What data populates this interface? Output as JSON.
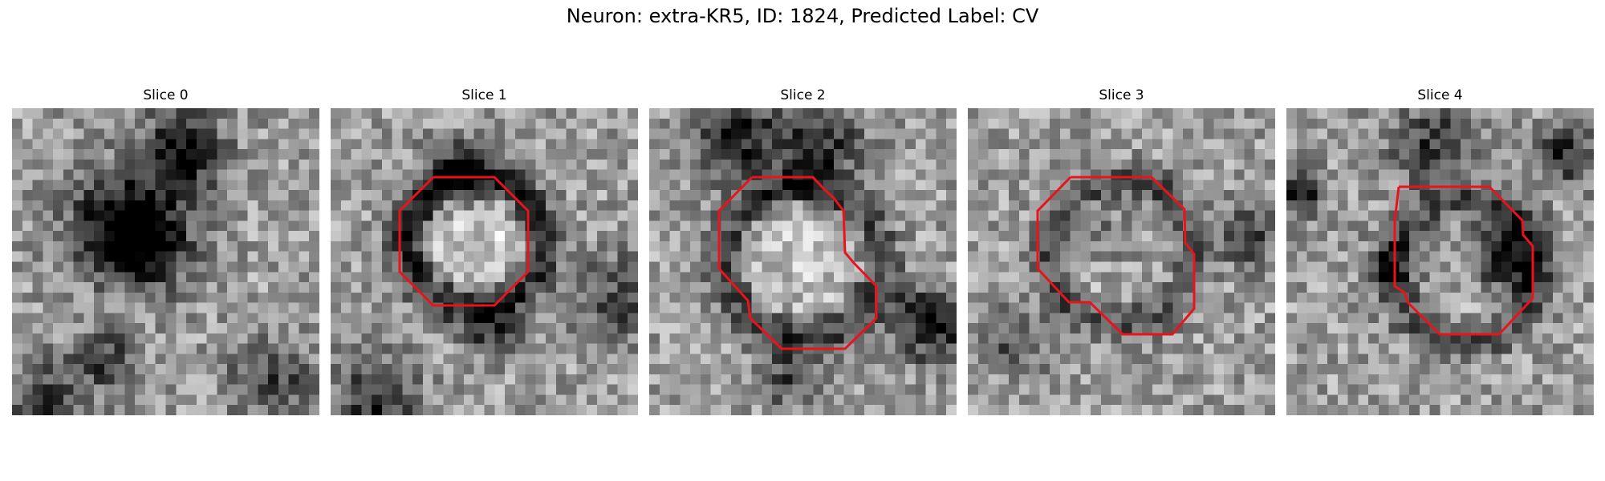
{
  "figure": {
    "title": "Neuron: extra-KR5, ID: 1824, Predicted Label: CV"
  },
  "panels": [
    {
      "label": "Slice 0"
    },
    {
      "label": "Slice 1"
    },
    {
      "label": "Slice 2"
    },
    {
      "label": "Slice 3"
    },
    {
      "label": "Slice 4"
    }
  ],
  "colors": {
    "contour": "#e8141c",
    "colormap": "gray"
  }
}
